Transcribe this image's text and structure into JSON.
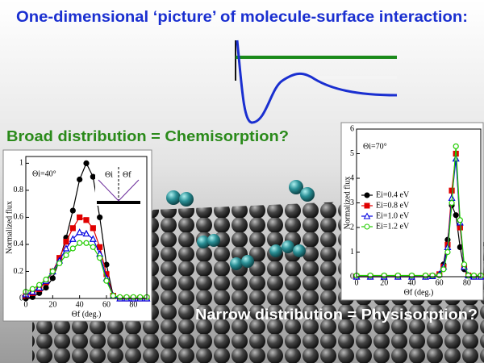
{
  "slide": {
    "title": "One-dimensional ‘picture’ of molecule-surface interaction:",
    "caption_broad": "Broad distribution = Chemisorption?",
    "caption_narrow": "Narrow distribution = Physisorption?"
  },
  "chart_data": [
    {
      "type": "line",
      "annotation": "Θi=40°",
      "inset_labels": [
        "Θi",
        "Θf"
      ],
      "xlabel": "Θf (deg.)",
      "ylabel": "Normalized flux",
      "xlim": [
        0,
        90
      ],
      "xticks": [
        0,
        20,
        40,
        60,
        80
      ],
      "ylim": [
        0,
        1.05
      ],
      "yticks": [
        0,
        0.2,
        0.4,
        0.6,
        0.8,
        1
      ],
      "x": [
        0,
        5,
        10,
        15,
        20,
        25,
        30,
        35,
        40,
        45,
        50,
        55,
        60,
        65,
        70,
        75,
        80,
        85,
        90
      ],
      "series": [
        {
          "color": "#000000",
          "marker": "circle",
          "filled": true,
          "values": [
            0,
            0.01,
            0.04,
            0.08,
            0.15,
            0.28,
            0.45,
            0.65,
            0.88,
            1.0,
            0.9,
            0.6,
            0.25,
            0.02,
            0,
            0,
            0,
            0,
            0
          ]
        },
        {
          "color": "#e00000",
          "marker": "square",
          "filled": true,
          "values": [
            0.02,
            0.04,
            0.07,
            0.12,
            0.2,
            0.3,
            0.42,
            0.52,
            0.6,
            0.58,
            0.52,
            0.38,
            0.18,
            0.02,
            0,
            0,
            0,
            0,
            0
          ]
        },
        {
          "color": "#0000e0",
          "marker": "triangle",
          "filled": false,
          "values": [
            0.03,
            0.05,
            0.08,
            0.13,
            0.2,
            0.28,
            0.37,
            0.44,
            0.49,
            0.48,
            0.44,
            0.33,
            0.15,
            0.02,
            0,
            0,
            0,
            0,
            0
          ]
        },
        {
          "color": "#22cc00",
          "marker": "circle",
          "filled": false,
          "values": [
            0.05,
            0.07,
            0.1,
            0.14,
            0.2,
            0.26,
            0.32,
            0.37,
            0.41,
            0.41,
            0.38,
            0.3,
            0.13,
            0.02,
            0.01,
            0.01,
            0.01,
            0.01,
            0.01
          ]
        }
      ]
    },
    {
      "type": "line",
      "annotation": "Θi=70°",
      "xlabel": "Θf (deg.)",
      "ylabel": "Normalized flux",
      "xlim": [
        0,
        90
      ],
      "xticks": [
        0,
        20,
        40,
        60,
        80
      ],
      "ylim": [
        0,
        6
      ],
      "yticks": [
        0,
        1,
        2,
        3,
        4,
        5,
        6
      ],
      "legend": "left",
      "x": [
        0,
        10,
        20,
        30,
        40,
        50,
        55,
        60,
        63,
        66,
        69,
        72,
        75,
        78,
        81,
        85,
        90
      ],
      "series": [
        {
          "name": "Ei=0.4 eV",
          "color": "#000000",
          "marker": "circle",
          "filled": true,
          "values": [
            0,
            0,
            0,
            0,
            0,
            0,
            0.02,
            0.1,
            0.5,
            1.5,
            2.9,
            2.5,
            1.2,
            0.3,
            0.05,
            0,
            0
          ]
        },
        {
          "name": "Ei=0.8 eV",
          "color": "#e00000",
          "marker": "square",
          "filled": true,
          "values": [
            0,
            0,
            0,
            0,
            0,
            0,
            0.02,
            0.1,
            0.4,
            1.3,
            3.5,
            5.0,
            2.0,
            0.4,
            0.05,
            0,
            0
          ]
        },
        {
          "name": "Ei=1.0 eV",
          "color": "#0000e0",
          "marker": "triangle",
          "filled": false,
          "values": [
            0,
            0,
            0,
            0,
            0,
            0,
            0.02,
            0.1,
            0.4,
            1.2,
            3.2,
            4.8,
            2.2,
            0.4,
            0.05,
            0,
            0
          ]
        },
        {
          "name": "Ei=1.2 eV",
          "color": "#22cc00",
          "marker": "circle",
          "filled": false,
          "values": [
            0.05,
            0.05,
            0.05,
            0.05,
            0.05,
            0.05,
            0.05,
            0.05,
            0.3,
            1.0,
            3.0,
            5.3,
            2.3,
            0.5,
            0.05,
            0.05,
            0.05
          ]
        }
      ]
    }
  ]
}
